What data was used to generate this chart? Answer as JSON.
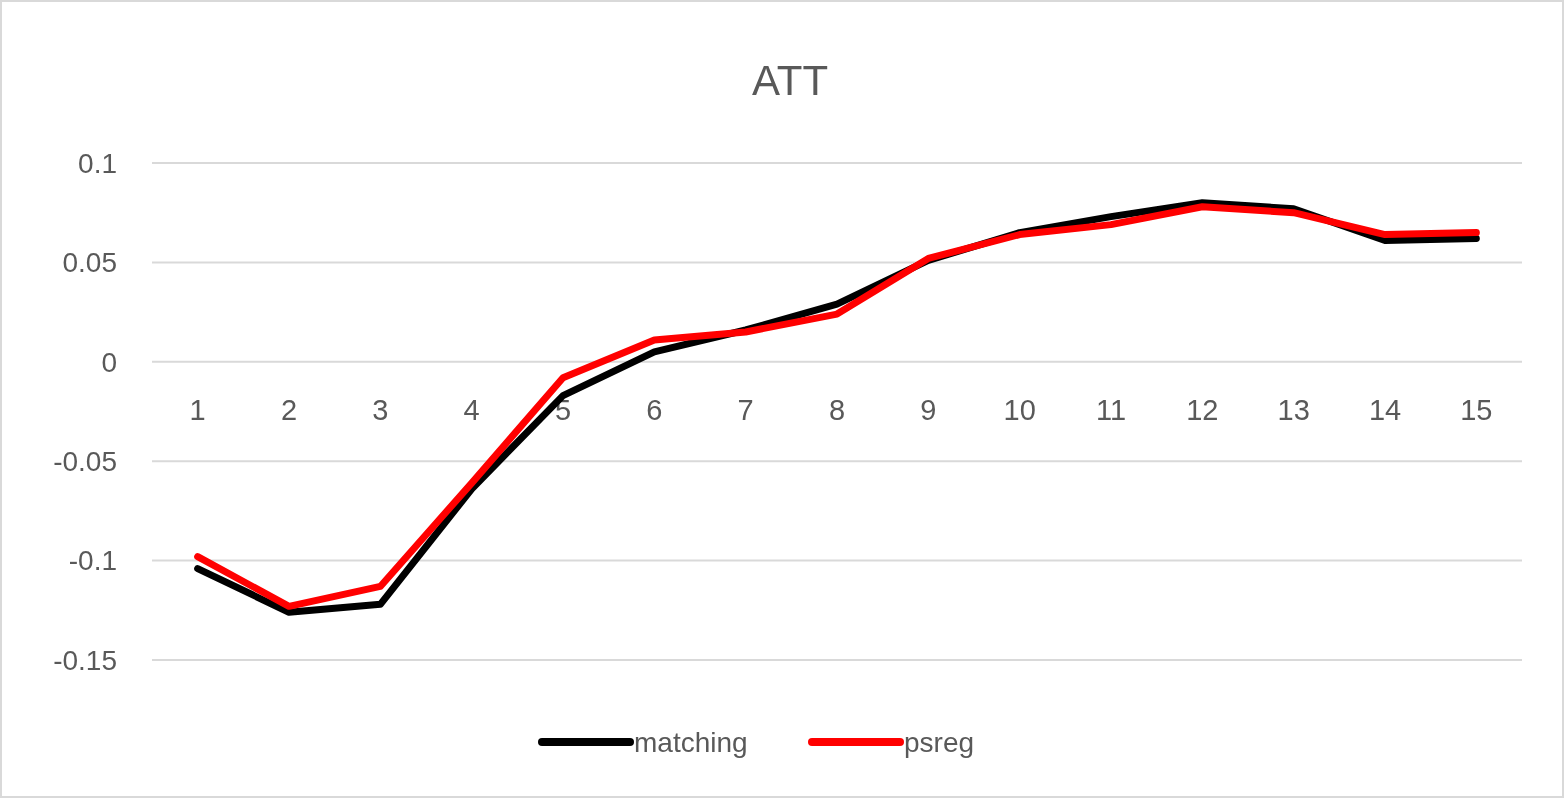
{
  "chart_data": {
    "type": "line",
    "title": "ATT",
    "categories": [
      "1",
      "2",
      "3",
      "4",
      "5",
      "6",
      "7",
      "8",
      "9",
      "10",
      "11",
      "12",
      "13",
      "14",
      "15"
    ],
    "series": [
      {
        "name": "matching",
        "color": "#000000",
        "values": [
          -0.104,
          -0.126,
          -0.122,
          -0.064,
          -0.017,
          0.005,
          0.016,
          0.029,
          0.051,
          0.065,
          0.073,
          0.08,
          0.077,
          0.061,
          0.062
        ]
      },
      {
        "name": "psreg",
        "color": "#ff0000",
        "values": [
          -0.098,
          -0.123,
          -0.113,
          -0.061,
          -0.008,
          0.011,
          0.015,
          0.024,
          0.052,
          0.064,
          0.069,
          0.078,
          0.075,
          0.064,
          0.065
        ]
      }
    ],
    "ylim": [
      -0.15,
      0.1
    ],
    "yticks": [
      -0.15,
      -0.1,
      -0.05,
      0,
      0.05,
      0.1
    ],
    "grid": "y",
    "legend": "bottom",
    "marker": "none",
    "line_style": "solid"
  }
}
